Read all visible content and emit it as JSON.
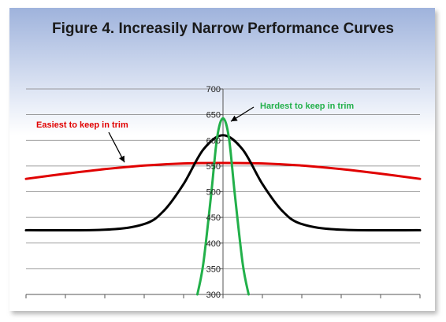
{
  "colors": {
    "background_top": "#9fb3dc",
    "background_bottom": "#ffffff",
    "gridline": "#7f7f7f",
    "easiest_curve": "#e00000",
    "middle_curve": "#000000",
    "hardest_curve": "#22b04a",
    "easiest_label": "#e00000",
    "hardest_label": "#22b04a"
  },
  "chart_data": {
    "type": "line",
    "title": "Figure 4. Increasily Narrow Performance Curves",
    "xlabel": "",
    "ylabel": "",
    "ylim": [
      300,
      700
    ],
    "xlim": [
      -10,
      10
    ],
    "yticks": [
      300,
      350,
      400,
      450,
      500,
      550,
      600,
      650,
      700
    ],
    "xticks": [
      -10,
      -8,
      -6,
      -4,
      -2,
      0,
      2,
      4,
      6,
      8,
      10
    ],
    "grid": true,
    "legend": "none",
    "series": [
      {
        "color": "#e00000",
        "x": [
          -10,
          -8,
          -6,
          -4,
          -2,
          0,
          2,
          4,
          6,
          8,
          10
        ],
        "y": [
          525,
          535,
          544,
          551,
          555,
          556,
          555,
          551,
          544,
          535,
          525
        ]
      },
      {
        "color": "#000000",
        "x": [
          -10,
          -6,
          -4,
          -3,
          -2,
          -1,
          0,
          1,
          2,
          3,
          4,
          6,
          10
        ],
        "y": [
          425,
          426,
          437,
          463,
          515,
          582,
          610,
          582,
          515,
          463,
          437,
          426,
          425
        ]
      },
      {
        "color": "#22b04a",
        "x": [
          -1.3,
          -1.0,
          -0.6,
          -0.3,
          0,
          0.3,
          0.6,
          1.0,
          1.3
        ],
        "y": [
          300,
          360,
          495,
          605,
          643,
          605,
          495,
          360,
          300
        ]
      }
    ],
    "annotations": [
      {
        "text": "Easiest to keep in trim",
        "color": "#e00000",
        "points_to": [
          -5.0,
          548
        ]
      },
      {
        "text": "Hardest to keep in trim",
        "color": "#22b04a",
        "points_to": [
          0.2,
          640
        ]
      }
    ]
  }
}
